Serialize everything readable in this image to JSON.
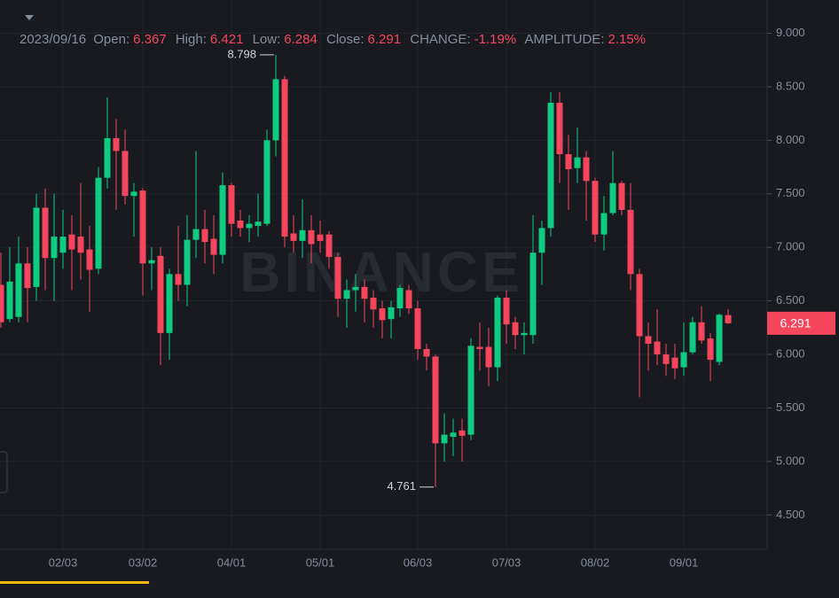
{
  "chart_data": {
    "type": "candlestick",
    "watermark": "BINANCE",
    "header": {
      "date": "2023/09/16",
      "open_label": "Open:",
      "high_label": "High:",
      "low_label": "Low:",
      "close_label": "Close:",
      "change_label": "CHANGE:",
      "change": "-1.19%",
      "amplitude_label": "AMPLITUDE:",
      "amplitude": "2.15%"
    },
    "categories": [
      null,
      null,
      null,
      null,
      null,
      null,
      null,
      "02/03",
      null,
      null,
      null,
      null,
      null,
      null,
      null,
      null,
      "03/02",
      null,
      null,
      null,
      null,
      null,
      null,
      null,
      null,
      null,
      "04/01",
      null,
      null,
      null,
      null,
      null,
      null,
      null,
      null,
      null,
      "05/01",
      null,
      null,
      null,
      null,
      null,
      null,
      null,
      null,
      null,
      null,
      "06/03",
      null,
      null,
      null,
      null,
      null,
      null,
      null,
      null,
      null,
      "07/03",
      null,
      null,
      null,
      null,
      null,
      null,
      null,
      null,
      null,
      "08/02",
      null,
      null,
      null,
      null,
      null,
      null,
      null,
      null,
      null,
      "09/01",
      null,
      null,
      null,
      null,
      null
    ],
    "open": [
      6.65,
      6.33,
      6.35,
      6.85,
      6.63,
      7.37,
      6.9,
      6.95,
      7.12,
      7.1,
      6.98,
      6.8,
      7.65,
      8.02,
      7.9,
      7.48,
      7.53,
      6.85,
      6.92,
      6.2,
      6.75,
      6.65,
      7.07,
      7.17,
      7.08,
      6.93,
      7.58,
      7.25,
      7.18,
      7.2,
      7.22,
      8.0,
      8.57,
      7.13,
      7.06,
      7.16,
      7.12,
      7.12,
      6.91,
      6.52,
      6.6,
      6.63,
      6.53,
      6.43,
      6.33,
      6.43,
      6.6,
      6.43,
      6.05,
      5.98,
      5.17,
      5.23,
      5.29,
      5.25,
      6.07,
      6.07,
      5.88,
      6.53,
      6.3,
      6.18,
      6.18,
      6.95,
      7.18,
      8.35,
      7.87,
      7.74,
      7.84,
      7.62,
      7.12,
      7.32,
      7.6,
      7.35,
      6.75,
      6.17,
      6.12,
      6.0,
      5.97,
      5.88,
      6.02,
      6.3,
      6.15,
      5.93,
      6.367
    ],
    "high": [
      6.95,
      7.0,
      7.1,
      7.0,
      7.5,
      7.55,
      7.5,
      7.35,
      7.3,
      7.6,
      7.2,
      7.75,
      8.4,
      8.2,
      8.1,
      7.6,
      7.55,
      7.0,
      7.0,
      6.8,
      7.2,
      7.3,
      7.9,
      7.35,
      7.3,
      7.7,
      7.6,
      7.35,
      7.3,
      7.5,
      8.1,
      8.798,
      8.6,
      7.3,
      7.45,
      7.3,
      7.25,
      7.15,
      6.95,
      6.7,
      6.75,
      6.7,
      6.6,
      6.5,
      6.5,
      6.65,
      6.65,
      6.5,
      6.1,
      6.0,
      5.45,
      5.4,
      5.4,
      6.15,
      6.3,
      6.25,
      6.55,
      6.6,
      6.35,
      6.3,
      7.3,
      7.25,
      8.45,
      8.45,
      8.05,
      8.12,
      7.9,
      7.65,
      7.48,
      7.9,
      7.62,
      7.6,
      6.8,
      6.3,
      6.42,
      6.1,
      6.1,
      6.3,
      6.35,
      6.45,
      6.2,
      6.38,
      6.421
    ],
    "low": [
      6.25,
      6.3,
      6.3,
      6.3,
      6.5,
      6.6,
      6.5,
      6.8,
      6.6,
      6.7,
      6.4,
      6.75,
      7.55,
      7.35,
      7.4,
      7.1,
      6.55,
      6.6,
      5.9,
      5.95,
      6.5,
      6.45,
      6.9,
      6.85,
      6.75,
      6.85,
      7.1,
      7.1,
      7.05,
      7.1,
      7.2,
      7.85,
      7.0,
      6.95,
      6.9,
      6.85,
      6.95,
      6.8,
      6.35,
      6.25,
      6.4,
      6.3,
      6.25,
      6.15,
      6.15,
      6.35,
      6.38,
      5.95,
      5.85,
      4.761,
      5.0,
      5.05,
      5.0,
      5.2,
      5.85,
      5.7,
      5.75,
      6.1,
      6.05,
      6.0,
      6.1,
      6.65,
      7.1,
      7.6,
      7.35,
      7.6,
      7.25,
      7.05,
      6.97,
      7.3,
      7.3,
      6.6,
      5.6,
      5.85,
      5.9,
      5.8,
      5.77,
      5.8,
      6.0,
      6.1,
      5.75,
      5.9,
      6.284
    ],
    "close": [
      6.3,
      6.68,
      6.85,
      6.62,
      7.37,
      6.9,
      7.1,
      7.1,
      6.98,
      6.95,
      6.79,
      7.65,
      8.02,
      7.9,
      7.48,
      7.52,
      6.85,
      6.88,
      6.2,
      6.75,
      6.65,
      7.07,
      7.17,
      7.05,
      6.93,
      7.58,
      7.22,
      7.18,
      7.22,
      7.24,
      8.0,
      8.57,
      7.1,
      7.06,
      7.16,
      7.03,
      7.06,
      6.91,
      6.52,
      6.6,
      6.63,
      6.52,
      6.42,
      6.32,
      6.44,
      6.62,
      6.43,
      6.05,
      5.98,
      5.17,
      5.25,
      5.27,
      5.24,
      6.08,
      6.05,
      5.88,
      6.53,
      6.28,
      6.18,
      6.2,
      6.95,
      7.18,
      8.35,
      7.87,
      7.73,
      7.84,
      7.62,
      7.12,
      7.32,
      7.6,
      7.35,
      6.75,
      6.17,
      6.1,
      6.0,
      5.91,
      5.87,
      6.02,
      6.3,
      6.13,
      5.95,
      6.37,
      6.291
    ],
    "up_color": "#0ecb81",
    "down_color": "#f6465d",
    "ylim": [
      4.18,
      9.31
    ],
    "yticks": [
      {
        "value": 4.5,
        "label": "4.500"
      },
      {
        "value": 5,
        "label": "5.000"
      },
      {
        "value": 5.5,
        "label": "5.500"
      },
      {
        "value": 6,
        "label": "6.000"
      },
      {
        "value": 6.5,
        "label": "6.500"
      },
      {
        "value": 7,
        "label": "7.000"
      },
      {
        "value": 7.5,
        "label": "7.500"
      },
      {
        "value": 8,
        "label": "8.000"
      },
      {
        "value": 8.5,
        "label": "8.500"
      },
      {
        "value": 9,
        "label": "9.000"
      }
    ],
    "grid": true
  }
}
